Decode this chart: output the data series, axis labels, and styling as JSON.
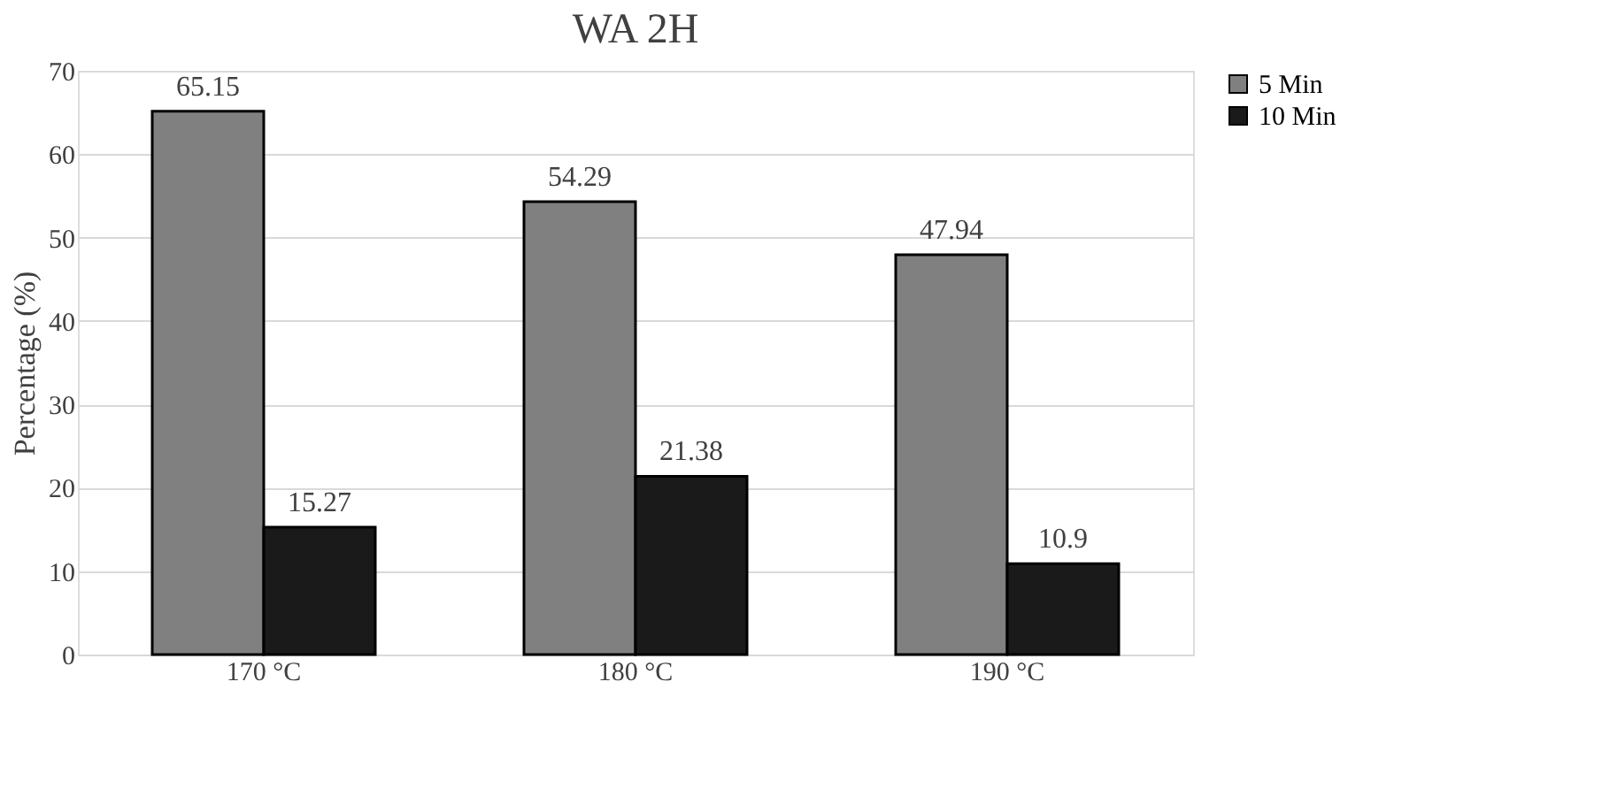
{
  "chart_data": {
    "type": "bar",
    "title": "WA 2H",
    "ylabel": "Percentage (%)",
    "categories": [
      "170 °C",
      "180 °C",
      "190 °C"
    ],
    "series": [
      {
        "name": "5 Min",
        "color": "#808080",
        "values": [
          65.15,
          54.29,
          47.94
        ]
      },
      {
        "name": "10 Min",
        "color": "#1a1a1a",
        "values": [
          15.27,
          21.38,
          10.9
        ]
      }
    ],
    "ylim": [
      0,
      70
    ],
    "yticks": [
      0,
      10,
      20,
      30,
      40,
      50,
      60,
      70
    ],
    "grid": "y",
    "legend": "right",
    "data_labels": true
  }
}
